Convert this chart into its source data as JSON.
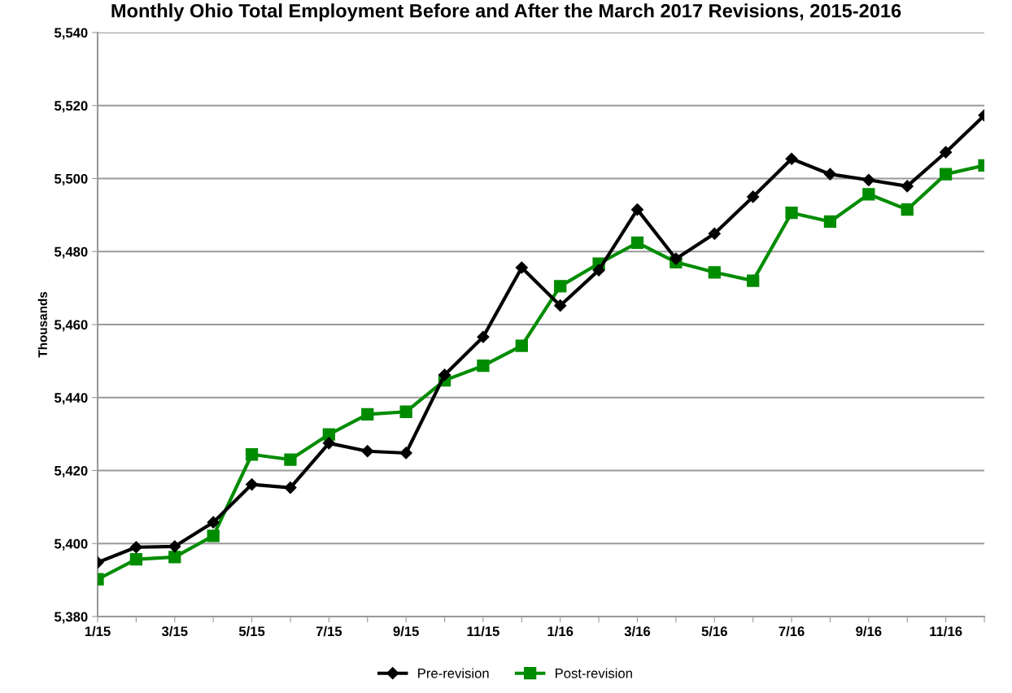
{
  "chart_data": {
    "type": "line",
    "title": "Monthly Ohio Total Employment Before and After the March 2017 Revisions, 2015-2016",
    "ylabel": "Thousands",
    "categories": [
      "1/15",
      null,
      "3/15",
      null,
      "5/15",
      null,
      "7/15",
      null,
      "9/15",
      null,
      "11/15",
      null,
      "1/16",
      null,
      "3/16",
      null,
      "5/16",
      null,
      "7/16",
      null,
      "9/16",
      null,
      "11/16",
      null
    ],
    "series": [
      {
        "name": "Pre-revision",
        "color": "#000000",
        "marker": "diamond",
        "values": [
          5394.8,
          5399.0,
          5399.2,
          5405.8,
          5416.2,
          5415.3,
          5427.5,
          5425.3,
          5424.8,
          5446.2,
          5456.6,
          5475.6,
          5465.2,
          5474.9,
          5491.5,
          5478.0,
          5484.9,
          5495.0,
          5505.4,
          5501.2,
          5499.6,
          5497.9,
          5507.2,
          5517.3
        ]
      },
      {
        "name": "Post-revision",
        "color": "#008c00",
        "marker": "square",
        "values": [
          5390.2,
          5395.7,
          5396.3,
          5402.1,
          5424.4,
          5423.0,
          5429.9,
          5435.4,
          5436.1,
          5444.7,
          5448.7,
          5454.2,
          5470.5,
          5476.7,
          5482.4,
          5477.1,
          5474.3,
          5472.0,
          5490.6,
          5488.2,
          5495.7,
          5491.5,
          5501.2,
          5503.6
        ]
      }
    ],
    "ylim": [
      5380,
      5540
    ],
    "yticks": [
      {
        "value": 5380,
        "label": "5,380"
      },
      {
        "value": 5400,
        "label": "5,400"
      },
      {
        "value": 5420,
        "label": "5,420"
      },
      {
        "value": 5440,
        "label": "5,440"
      },
      {
        "value": 5460,
        "label": "5,460"
      },
      {
        "value": 5480,
        "label": "5,480"
      },
      {
        "value": 5500,
        "label": "5,500"
      },
      {
        "value": 5520,
        "label": "5,520"
      },
      {
        "value": 5540,
        "label": "5,540"
      }
    ],
    "grid": "y",
    "legend": "bottom",
    "line_style": "solid"
  }
}
